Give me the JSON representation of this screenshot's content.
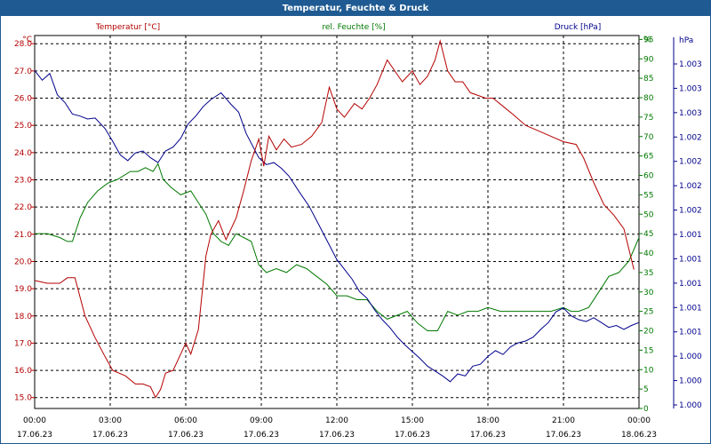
{
  "window": {
    "title": "Temperatur, Feuchte & Druck"
  },
  "chart_data": {
    "type": "line",
    "title": "Temperatur, Feuchte & Druck",
    "x_tick_times": [
      "00:00",
      "03:00",
      "06:00",
      "09:00",
      "12:00",
      "15:00",
      "18:00",
      "21:00",
      "00:00"
    ],
    "x_tick_dates": [
      "17.06.23",
      "17.06.23",
      "17.06.23",
      "17.06.23",
      "17.06.23",
      "17.06.23",
      "17.06.23",
      "17.06.23",
      "18.06.23"
    ],
    "x_hours": [
      0,
      24
    ],
    "grid": true,
    "axes": {
      "temperature": {
        "unit": "°C",
        "label": "Temperatur [°C]",
        "ticks": [
          "15.0",
          "16.0",
          "17.0",
          "18.0",
          "19.0",
          "20.0",
          "21.0",
          "22.0",
          "23.0",
          "24.0",
          "25.0",
          "26.0",
          "27.0",
          "28.0"
        ],
        "range": [
          14.6,
          28.3
        ]
      },
      "humidity": {
        "unit": "%",
        "label": "rel. Feuchte [%]",
        "ticks": [
          "0",
          "5",
          "10",
          "15",
          "20",
          "25",
          "30",
          "35",
          "40",
          "45",
          "50",
          "55",
          "60",
          "65",
          "70",
          "75",
          "80",
          "85",
          "90",
          "95",
          "%"
        ],
        "range": [
          0,
          96
        ]
      },
      "pressure": {
        "unit": "hPa",
        "label": "Druck [hPa]",
        "ticks": [
          "1.000",
          "1.000",
          "1.000",
          "1.001",
          "1.001",
          "1.001",
          "1.001",
          "1.001",
          "1.002",
          "1.002",
          "1.002",
          "1.002",
          "1.003",
          "1.003",
          "1.003"
        ]
      }
    },
    "colors": {
      "temperature": "#b40000",
      "humidity": "#007800",
      "pressure": "#00008c",
      "title_bar": "#1f5b92"
    },
    "series": [
      {
        "name": "Temperatur [°C]",
        "axis": "temperature",
        "x": [
          0,
          0.5,
          1,
          1.3,
          1.6,
          2,
          2.4,
          2.8,
          3.1,
          3.6,
          4.0,
          4.3,
          4.6,
          4.8,
          5.0,
          5.2,
          5.5,
          5.7,
          6.0,
          6.2,
          6.5,
          6.8,
          7.0,
          7.3,
          7.6,
          8.0,
          8.3,
          8.6,
          8.9,
          9.1,
          9.3,
          9.6,
          9.9,
          10.2,
          10.6,
          11.0,
          11.4,
          11.7,
          12.0,
          12.3,
          12.7,
          13.0,
          13.3,
          13.6,
          14.0,
          14.3,
          14.6,
          15.0,
          15.3,
          15.6,
          15.9,
          16.1,
          16.4,
          16.7,
          17.0,
          17.3,
          17.6,
          17.9,
          18.2,
          18.6,
          19.0,
          19.5,
          20.0,
          20.5,
          21.0,
          21.5,
          21.8,
          22.2,
          22.6,
          23.0,
          23.4,
          23.8
        ],
        "values": [
          19.3,
          19.2,
          19.2,
          19.4,
          19.4,
          18.0,
          17.2,
          16.5,
          16.0,
          15.8,
          15.5,
          15.5,
          15.4,
          15.0,
          15.3,
          15.9,
          16.0,
          16.4,
          17.0,
          16.6,
          17.5,
          20.2,
          21.0,
          21.5,
          20.8,
          21.6,
          22.6,
          23.7,
          24.5,
          23.5,
          24.6,
          24.1,
          24.5,
          24.2,
          24.3,
          24.6,
          25.1,
          26.4,
          25.6,
          25.3,
          25.8,
          25.6,
          26.0,
          26.5,
          27.4,
          27.0,
          26.6,
          27.0,
          26.5,
          26.8,
          27.4,
          28.1,
          27.0,
          26.6,
          26.6,
          26.2,
          26.1,
          26.0,
          26.0,
          25.7,
          25.4,
          25.0,
          24.8,
          24.6,
          24.4,
          24.3,
          23.8,
          22.9,
          22.1,
          21.7,
          21.2,
          19.7
        ]
      },
      {
        "name": "rel. Feuchte [%]",
        "axis": "humidity",
        "x": [
          0,
          0.5,
          1,
          1.3,
          1.5,
          1.8,
          2.1,
          2.5,
          2.9,
          3.3,
          3.8,
          4.1,
          4.4,
          4.7,
          4.9,
          5.1,
          5.4,
          5.8,
          6.2,
          6.5,
          6.8,
          7.1,
          7.4,
          7.7,
          8.0,
          8.3,
          8.6,
          8.9,
          9.2,
          9.6,
          10.0,
          10.4,
          10.8,
          11.2,
          11.6,
          12.0,
          12.4,
          12.8,
          13.2,
          13.6,
          14.0,
          14.4,
          14.8,
          15.2,
          15.6,
          16.0,
          16.4,
          16.8,
          17.2,
          17.6,
          18.0,
          18.5,
          19.0,
          19.5,
          20.0,
          20.5,
          21.0,
          21.3,
          21.6,
          22.0,
          22.4,
          22.8,
          23.2,
          23.6,
          24.0
        ],
        "values": [
          45,
          45,
          44,
          43,
          43,
          49,
          53,
          56,
          58,
          59,
          61,
          61,
          62,
          61,
          63,
          59,
          57,
          55,
          56,
          53,
          50,
          45,
          43,
          42,
          45,
          44,
          43,
          37,
          35,
          36,
          35,
          37,
          36,
          34,
          32,
          29,
          29,
          28,
          28,
          25,
          23,
          24,
          25,
          22,
          20,
          20,
          25,
          24,
          25,
          25,
          26,
          25,
          25,
          25,
          25,
          25,
          26,
          25,
          25,
          26,
          30,
          34,
          35,
          38,
          44
        ]
      },
      {
        "name": "Druck [hPa]",
        "axis": "pressure",
        "x": [
          0,
          0.3,
          0.6,
          0.9,
          1.2,
          1.5,
          1.8,
          2.1,
          2.4,
          2.8,
          3.1,
          3.4,
          3.7,
          4.0,
          4.3,
          4.6,
          4.9,
          5.2,
          5.5,
          5.8,
          6.1,
          6.4,
          6.7,
          7.0,
          7.4,
          7.8,
          8.1,
          8.4,
          8.7,
          8.9,
          9.2,
          9.5,
          9.8,
          10.1,
          10.5,
          10.9,
          11.3,
          11.7,
          12.0,
          12.3,
          12.6,
          12.9,
          13.2,
          13.5,
          13.8,
          14.1,
          14.4,
          14.7,
          15.0,
          15.3,
          15.6,
          15.9,
          16.2,
          16.5,
          16.8,
          17.1,
          17.4,
          17.7,
          18.0,
          18.3,
          18.6,
          18.9,
          19.2,
          19.5,
          19.8,
          20.1,
          20.4,
          20.7,
          21.0,
          21.3,
          21.6,
          21.9,
          22.2,
          22.5,
          22.8,
          23.1,
          23.4,
          23.7,
          24.0
        ],
        "values": [
          1.003,
          1.003,
          1.003,
          1.003,
          1.003,
          1.003,
          1.003,
          1.003,
          1.003,
          1.003,
          1.003,
          1.003,
          1.002,
          1.002,
          1.002,
          1.002,
          1.002,
          1.002,
          1.002,
          1.002,
          1.002,
          1.002,
          1.002,
          1.002,
          1.003,
          1.003,
          1.003,
          1.003,
          1.003,
          1.003,
          1.002,
          1.002,
          1.002,
          1.002,
          1.002,
          1.002,
          1.002,
          1.002,
          1.002,
          1.001,
          1.001,
          1.001,
          1.001,
          1.001,
          1.001,
          1.001,
          1.001,
          1.001,
          1.001,
          1.001,
          1.001,
          1.0,
          1.0,
          1.0,
          1.0,
          1.0,
          1.0,
          1.0,
          1.0,
          1.0,
          1.0,
          1.0,
          1.0,
          1.0,
          1.0,
          1.0,
          1.0,
          1.001,
          1.001,
          1.001,
          1.001,
          1.0,
          1.0,
          1.0,
          1.0,
          1.0,
          1.0,
          1.0,
          1.0
        ]
      }
    ]
  }
}
